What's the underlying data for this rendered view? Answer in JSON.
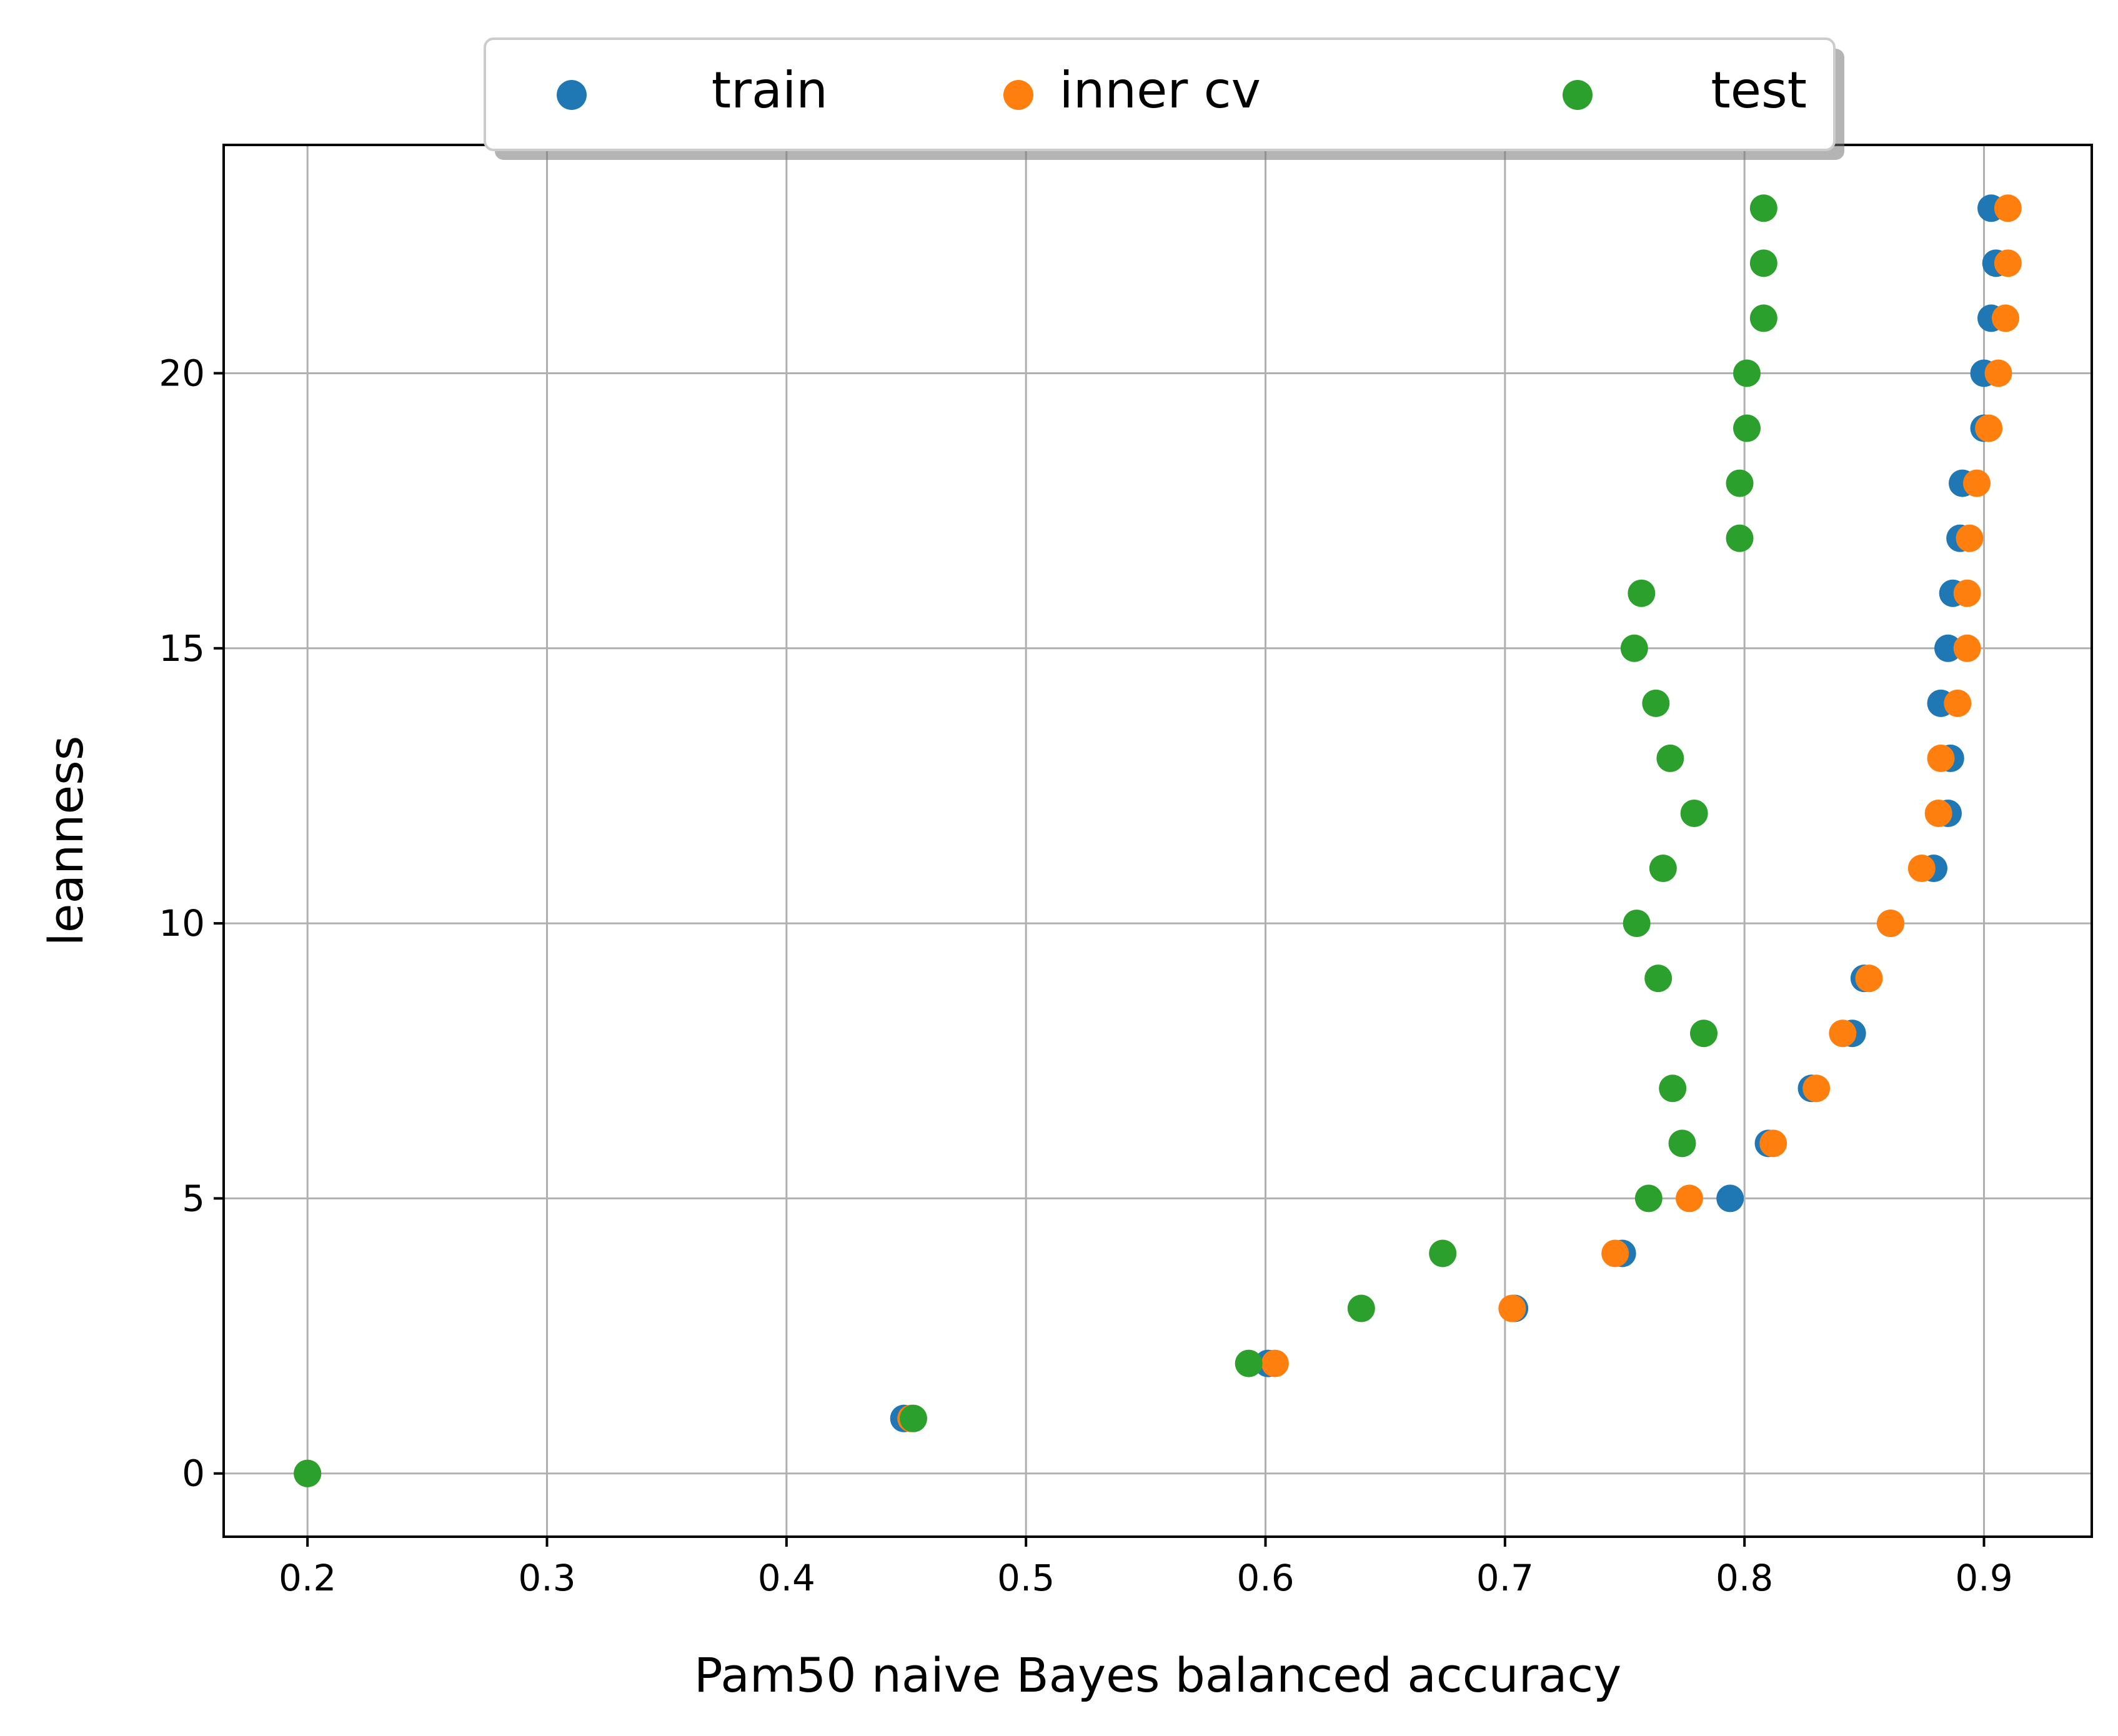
{
  "chart_data": {
    "type": "scatter",
    "xlabel": "Pam50 naive Bayes balanced accuracy",
    "ylabel": "leanness",
    "xlim": [
      0.165,
      0.945
    ],
    "ylim": [
      -1.15,
      24.15
    ],
    "xticks": [
      0.2,
      0.3,
      0.4,
      0.5,
      0.6,
      0.7,
      0.8,
      0.9
    ],
    "yticks": [
      0,
      5,
      10,
      15,
      20
    ],
    "grid": true,
    "legend_placement": "top-center",
    "series": [
      {
        "name": "train",
        "color": "#1f77b4",
        "points": [
          [
            0.2,
            0
          ],
          [
            0.449,
            1
          ],
          [
            0.601,
            2
          ],
          [
            0.704,
            3
          ],
          [
            0.749,
            4
          ],
          [
            0.794,
            5
          ],
          [
            0.81,
            6
          ],
          [
            0.828,
            7
          ],
          [
            0.845,
            8
          ],
          [
            0.85,
            9
          ],
          [
            0.861,
            10
          ],
          [
            0.879,
            11
          ],
          [
            0.885,
            12
          ],
          [
            0.886,
            13
          ],
          [
            0.882,
            14
          ],
          [
            0.885,
            15
          ],
          [
            0.887,
            16
          ],
          [
            0.89,
            17
          ],
          [
            0.891,
            18
          ],
          [
            0.9,
            19
          ],
          [
            0.9,
            20
          ],
          [
            0.903,
            21
          ],
          [
            0.905,
            22
          ],
          [
            0.903,
            23
          ]
        ]
      },
      {
        "name": "inner cv",
        "color": "#ff7f0e",
        "points": [
          [
            0.2,
            0
          ],
          [
            0.452,
            1
          ],
          [
            0.604,
            2
          ],
          [
            0.703,
            3
          ],
          [
            0.746,
            4
          ],
          [
            0.777,
            5
          ],
          [
            0.812,
            6
          ],
          [
            0.83,
            7
          ],
          [
            0.841,
            8
          ],
          [
            0.852,
            9
          ],
          [
            0.861,
            10
          ],
          [
            0.874,
            11
          ],
          [
            0.881,
            12
          ],
          [
            0.882,
            13
          ],
          [
            0.889,
            14
          ],
          [
            0.893,
            15
          ],
          [
            0.893,
            16
          ],
          [
            0.894,
            17
          ],
          [
            0.897,
            18
          ],
          [
            0.902,
            19
          ],
          [
            0.906,
            20
          ],
          [
            0.909,
            21
          ],
          [
            0.91,
            22
          ],
          [
            0.91,
            23
          ]
        ]
      },
      {
        "name": "test",
        "color": "#2ca02c",
        "points": [
          [
            0.2,
            0
          ],
          [
            0.453,
            1
          ],
          [
            0.593,
            2
          ],
          [
            0.64,
            3
          ],
          [
            0.674,
            4
          ],
          [
            0.76,
            5
          ],
          [
            0.774,
            6
          ],
          [
            0.77,
            7
          ],
          [
            0.783,
            8
          ],
          [
            0.764,
            9
          ],
          [
            0.755,
            10
          ],
          [
            0.766,
            11
          ],
          [
            0.779,
            12
          ],
          [
            0.769,
            13
          ],
          [
            0.763,
            14
          ],
          [
            0.754,
            15
          ],
          [
            0.757,
            16
          ],
          [
            0.798,
            17
          ],
          [
            0.798,
            18
          ],
          [
            0.801,
            19
          ],
          [
            0.801,
            20
          ],
          [
            0.808,
            21
          ],
          [
            0.808,
            22
          ],
          [
            0.808,
            23
          ]
        ]
      }
    ]
  }
}
